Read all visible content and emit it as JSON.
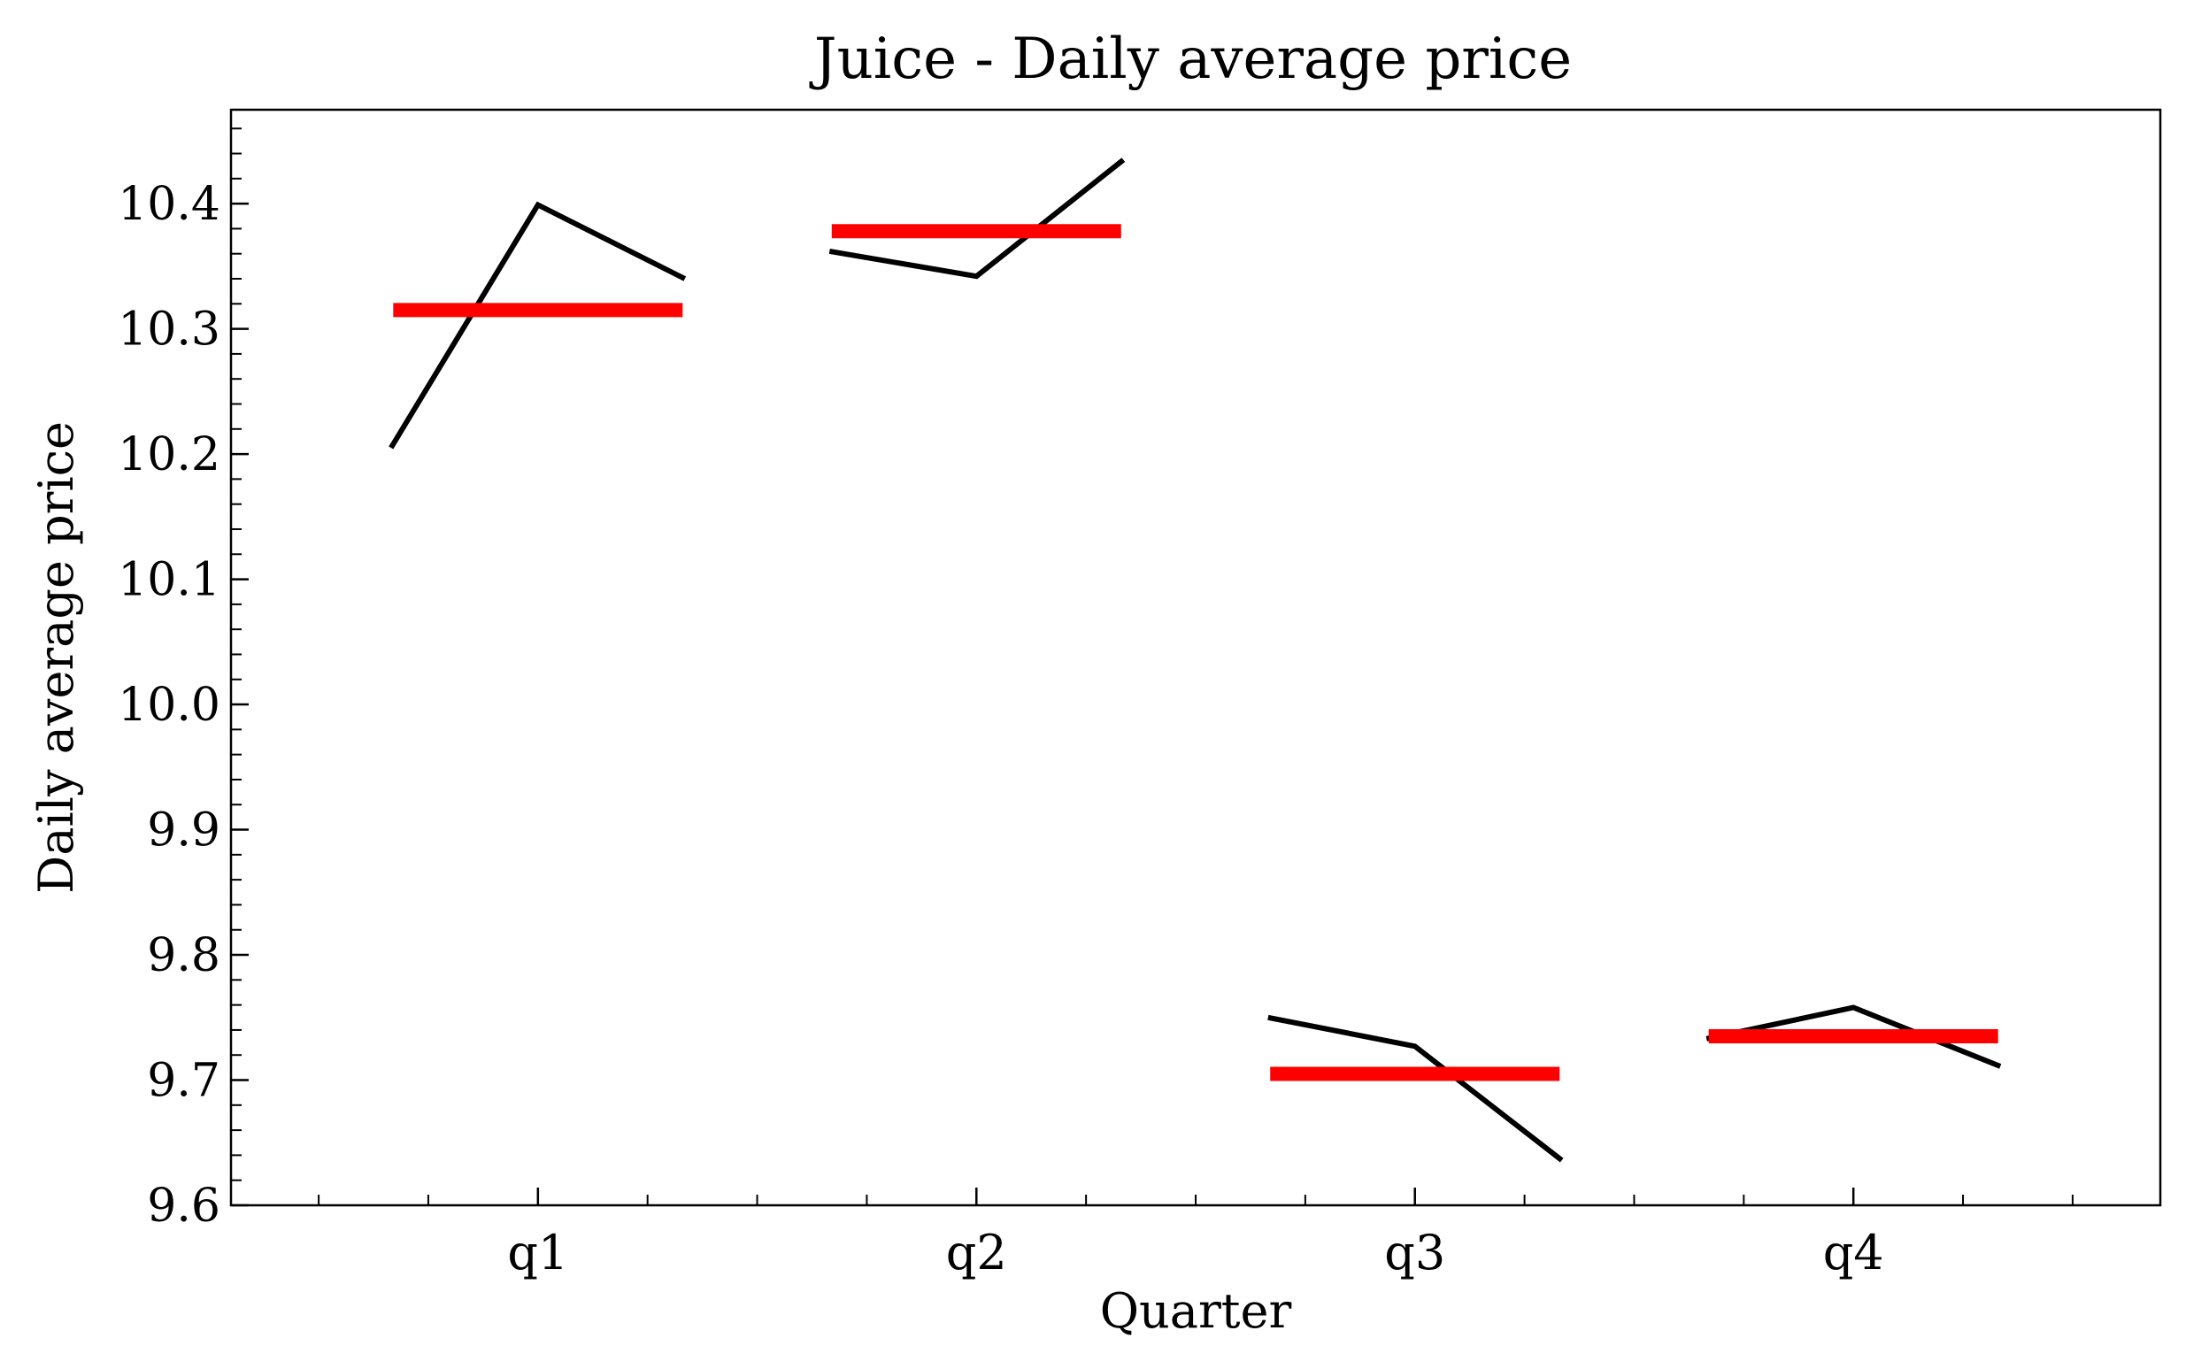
{
  "chart_data": {
    "type": "line",
    "title": "Juice - Daily average price",
    "xlabel": "Quarter",
    "ylabel": "Daily average price",
    "categories": [
      "q1",
      "q2",
      "q3",
      "q4"
    ],
    "ylim": [
      9.6,
      10.475
    ],
    "yticks": [
      9.6,
      9.7,
      9.8,
      9.9,
      10.0,
      10.1,
      10.2,
      10.3,
      10.4
    ],
    "ytick_labels": [
      "9.6",
      "9.7",
      "9.8",
      "9.9",
      "10.0",
      "10.1",
      "10.2",
      "10.3",
      "10.4"
    ],
    "grid": false,
    "legend": "none",
    "series": [
      {
        "values": [
          [
            10.205,
            10.399,
            10.34
          ],
          [
            10.362,
            10.342,
            10.435
          ],
          [
            9.75,
            9.727,
            9.636
          ],
          [
            9.733,
            9.758,
            9.711
          ]
        ],
        "color": "#000000"
      },
      {
        "values": [
          10.315,
          10.378,
          9.705,
          9.735
        ],
        "color": "#ff0000"
      }
    ]
  }
}
